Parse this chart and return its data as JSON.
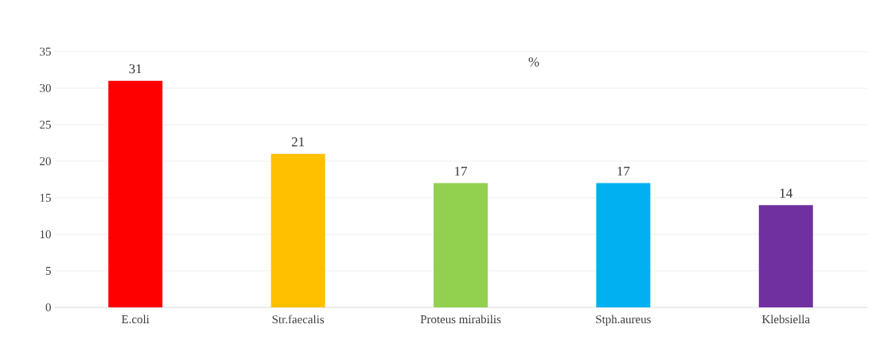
{
  "chart_data": {
    "type": "bar",
    "title": "%",
    "categories": [
      "E.coli",
      "Str.faecalis",
      "Proteus mirabilis",
      "Stph.aureus",
      "Klebsiella"
    ],
    "values": [
      31,
      21,
      17,
      17,
      14
    ],
    "colors": [
      "#ff0000",
      "#ffc000",
      "#92d050",
      "#00b0f0",
      "#7030a0"
    ],
    "ylim": [
      0,
      35
    ],
    "yticks": [
      0,
      5,
      10,
      15,
      20,
      25,
      30,
      35
    ],
    "grid": "y",
    "data_labels": true
  }
}
